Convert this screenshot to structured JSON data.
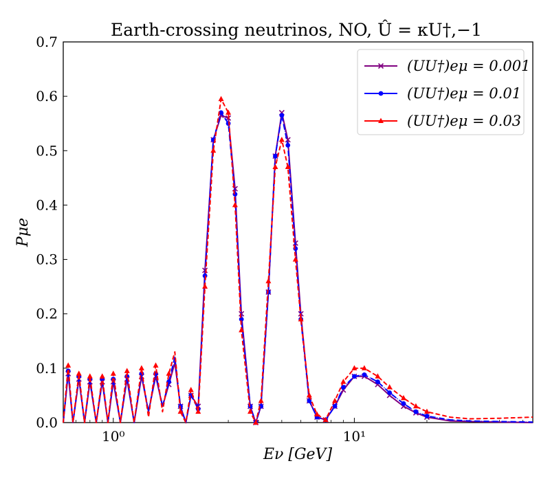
{
  "chart_data": {
    "type": "line",
    "title": "Earth-crossing neutrinos, NO, Û = κU†,−1",
    "xlabel": "Eν [GeV]",
    "ylabel": "Pμe",
    "xscale": "log",
    "xlim": [
      0.62,
      55
    ],
    "ylim": [
      0,
      0.7
    ],
    "x_ticks": [
      {
        "value": 1,
        "label": "10⁰"
      },
      {
        "value": 10,
        "label": "10¹"
      }
    ],
    "y_ticks": [
      {
        "value": 0.0,
        "label": "0.0"
      },
      {
        "value": 0.1,
        "label": "0.1"
      },
      {
        "value": 0.2,
        "label": "0.2"
      },
      {
        "value": 0.3,
        "label": "0.3"
      },
      {
        "value": 0.4,
        "label": "0.4"
      },
      {
        "value": 0.5,
        "label": "0.5"
      },
      {
        "value": 0.6,
        "label": "0.6"
      },
      {
        "value": 0.7,
        "label": "0.7"
      }
    ],
    "legend_position": "top-right",
    "colors": {
      "purple": "#800080",
      "blue": "#0000ff",
      "red": "#ff0000"
    },
    "series": [
      {
        "name": "(UU†)eμ = 0.001",
        "color": "#800080",
        "marker": "x",
        "points": [
          [
            0.62,
            0.0
          ],
          [
            0.65,
            0.09
          ],
          [
            0.68,
            0.0
          ],
          [
            0.72,
            0.08
          ],
          [
            0.76,
            0.0
          ],
          [
            0.8,
            0.075
          ],
          [
            0.85,
            0.0
          ],
          [
            0.9,
            0.075
          ],
          [
            0.95,
            0.0
          ],
          [
            1.0,
            0.075
          ],
          [
            1.07,
            0.0
          ],
          [
            1.14,
            0.08
          ],
          [
            1.22,
            0.0
          ],
          [
            1.31,
            0.085
          ],
          [
            1.4,
            0.02
          ],
          [
            1.5,
            0.085
          ],
          [
            1.6,
            0.03
          ],
          [
            1.7,
            0.07
          ],
          [
            1.8,
            0.11
          ],
          [
            1.9,
            0.03
          ],
          [
            2.0,
            0.0
          ],
          [
            2.1,
            0.05
          ],
          [
            2.25,
            0.03
          ],
          [
            2.4,
            0.28
          ],
          [
            2.6,
            0.52
          ],
          [
            2.8,
            0.565
          ],
          [
            3.0,
            0.56
          ],
          [
            3.2,
            0.43
          ],
          [
            3.4,
            0.2
          ],
          [
            3.7,
            0.03
          ],
          [
            3.9,
            0.0
          ],
          [
            4.1,
            0.03
          ],
          [
            4.4,
            0.24
          ],
          [
            4.7,
            0.49
          ],
          [
            5.0,
            0.57
          ],
          [
            5.3,
            0.52
          ],
          [
            5.7,
            0.33
          ],
          [
            6.0,
            0.2
          ],
          [
            6.5,
            0.04
          ],
          [
            7.0,
            0.01
          ],
          [
            7.6,
            0.005
          ],
          [
            8.3,
            0.03
          ],
          [
            9.0,
            0.06
          ],
          [
            10.0,
            0.085
          ],
          [
            11.0,
            0.085
          ],
          [
            12.5,
            0.07
          ],
          [
            14.0,
            0.05
          ],
          [
            16.0,
            0.03
          ],
          [
            18.0,
            0.018
          ],
          [
            20.0,
            0.01
          ],
          [
            25.0,
            0.003
          ],
          [
            30.0,
            0.002
          ],
          [
            40.0,
            0.001
          ],
          [
            55.0,
            0.0
          ]
        ]
      },
      {
        "name": "(UU†)eμ = 0.01",
        "color": "#0000ff",
        "marker": "o",
        "points": [
          [
            0.62,
            0.0
          ],
          [
            0.65,
            0.095
          ],
          [
            0.68,
            0.0
          ],
          [
            0.72,
            0.085
          ],
          [
            0.76,
            0.0
          ],
          [
            0.8,
            0.08
          ],
          [
            0.85,
            0.0
          ],
          [
            0.9,
            0.08
          ],
          [
            0.95,
            0.0
          ],
          [
            1.0,
            0.08
          ],
          [
            1.07,
            0.0
          ],
          [
            1.14,
            0.085
          ],
          [
            1.22,
            0.0
          ],
          [
            1.31,
            0.09
          ],
          [
            1.4,
            0.02
          ],
          [
            1.5,
            0.09
          ],
          [
            1.6,
            0.03
          ],
          [
            1.7,
            0.075
          ],
          [
            1.8,
            0.12
          ],
          [
            1.9,
            0.03
          ],
          [
            2.0,
            0.0
          ],
          [
            2.1,
            0.05
          ],
          [
            2.25,
            0.025
          ],
          [
            2.4,
            0.27
          ],
          [
            2.6,
            0.52
          ],
          [
            2.8,
            0.57
          ],
          [
            3.0,
            0.55
          ],
          [
            3.2,
            0.42
          ],
          [
            3.4,
            0.19
          ],
          [
            3.7,
            0.03
          ],
          [
            3.9,
            0.0
          ],
          [
            4.1,
            0.03
          ],
          [
            4.4,
            0.24
          ],
          [
            4.7,
            0.49
          ],
          [
            5.0,
            0.565
          ],
          [
            5.3,
            0.51
          ],
          [
            5.7,
            0.32
          ],
          [
            6.0,
            0.19
          ],
          [
            6.5,
            0.04
          ],
          [
            7.0,
            0.01
          ],
          [
            7.6,
            0.005
          ],
          [
            8.3,
            0.03
          ],
          [
            9.0,
            0.065
          ],
          [
            10.0,
            0.085
          ],
          [
            11.0,
            0.088
          ],
          [
            12.5,
            0.075
          ],
          [
            14.0,
            0.055
          ],
          [
            16.0,
            0.035
          ],
          [
            18.0,
            0.02
          ],
          [
            20.0,
            0.012
          ],
          [
            25.0,
            0.005
          ],
          [
            30.0,
            0.003
          ],
          [
            40.0,
            0.002
          ],
          [
            55.0,
            0.001
          ]
        ]
      },
      {
        "name": "(UU†)eμ = 0.03",
        "color": "#ff0000",
        "marker": "^",
        "points": [
          [
            0.62,
            0.0
          ],
          [
            0.65,
            0.105
          ],
          [
            0.68,
            0.0
          ],
          [
            0.72,
            0.09
          ],
          [
            0.76,
            0.0
          ],
          [
            0.8,
            0.085
          ],
          [
            0.85,
            0.0
          ],
          [
            0.9,
            0.085
          ],
          [
            0.95,
            0.0
          ],
          [
            1.0,
            0.09
          ],
          [
            1.07,
            0.0
          ],
          [
            1.14,
            0.095
          ],
          [
            1.22,
            0.0
          ],
          [
            1.31,
            0.1
          ],
          [
            1.4,
            0.01
          ],
          [
            1.5,
            0.105
          ],
          [
            1.6,
            0.02
          ],
          [
            1.7,
            0.09
          ],
          [
            1.8,
            0.13
          ],
          [
            1.9,
            0.02
          ],
          [
            2.0,
            0.0
          ],
          [
            2.1,
            0.06
          ],
          [
            2.25,
            0.02
          ],
          [
            2.4,
            0.25
          ],
          [
            2.6,
            0.5
          ],
          [
            2.8,
            0.595
          ],
          [
            3.0,
            0.57
          ],
          [
            3.2,
            0.4
          ],
          [
            3.4,
            0.17
          ],
          [
            3.7,
            0.02
          ],
          [
            3.9,
            0.0
          ],
          [
            4.1,
            0.04
          ],
          [
            4.4,
            0.26
          ],
          [
            4.7,
            0.47
          ],
          [
            5.0,
            0.52
          ],
          [
            5.3,
            0.47
          ],
          [
            5.7,
            0.3
          ],
          [
            6.0,
            0.19
          ],
          [
            6.5,
            0.05
          ],
          [
            7.0,
            0.015
          ],
          [
            7.6,
            0.005
          ],
          [
            8.3,
            0.04
          ],
          [
            9.0,
            0.075
          ],
          [
            10.0,
            0.1
          ],
          [
            11.0,
            0.1
          ],
          [
            12.5,
            0.085
          ],
          [
            14.0,
            0.065
          ],
          [
            16.0,
            0.045
          ],
          [
            18.0,
            0.03
          ],
          [
            20.0,
            0.02
          ],
          [
            25.0,
            0.01
          ],
          [
            30.0,
            0.007
          ],
          [
            40.0,
            0.008
          ],
          [
            55.0,
            0.01
          ]
        ]
      }
    ]
  }
}
